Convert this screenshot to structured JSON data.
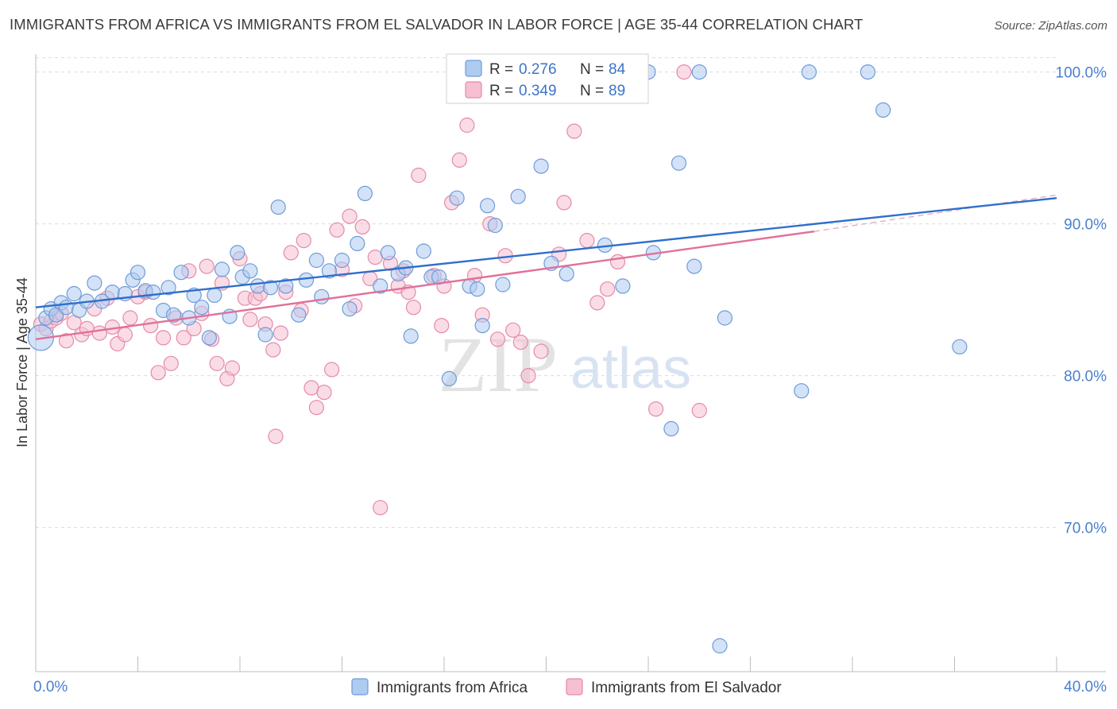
{
  "header": {
    "title": "IMMIGRANTS FROM AFRICA VS IMMIGRANTS FROM EL SALVADOR IN LABOR FORCE | AGE 35-44 CORRELATION CHART",
    "source": "Source: ZipAtlas.com"
  },
  "watermark": {
    "zip": "ZIP",
    "atlas": "atlas"
  },
  "colors": {
    "africa_fill": "#aecbf0",
    "africa_stroke": "#6f9bd8",
    "africa_line": "#2f6fcc",
    "salvador_fill": "#f6bfd2",
    "salvador_stroke": "#e58aa9",
    "salvador_line": "#e0709a",
    "tick_text": "#4a7fcf"
  },
  "legend": {
    "rows": [
      {
        "r_label": "R =",
        "r_value": "0.276",
        "n_label": "N =",
        "n_value": "84"
      },
      {
        "r_label": "R =",
        "r_value": "0.349",
        "n_label": "N =",
        "n_value": "89"
      }
    ]
  },
  "chart_data": {
    "type": "scatter",
    "title": "IMMIGRANTS FROM AFRICA VS IMMIGRANTS FROM EL SALVADOR IN LABOR FORCE | AGE 35-44 CORRELATION CHART",
    "xlabel": "",
    "ylabel": "In Labor Force | Age 35-44",
    "xlim": [
      0,
      40
    ],
    "ylim": [
      60.5,
      101.5
    ],
    "x_tick_labels": [
      "0.0%",
      "40.0%"
    ],
    "y_ticks": [
      70,
      80,
      90,
      100
    ],
    "y_tick_labels": [
      "70.0%",
      "80.0%",
      "90.0%",
      "100.0%"
    ],
    "grid": "horizontal dashed",
    "legend_position": "top-center",
    "series": [
      {
        "name": "Immigrants from Africa",
        "r": 0.276,
        "n": 84,
        "trend": {
          "x": [
            0,
            40
          ],
          "y": [
            84.5,
            91.7
          ]
        },
        "points": [
          [
            0.2,
            82.5
          ],
          [
            0.4,
            83.8
          ],
          [
            0.6,
            84.4
          ],
          [
            0.8,
            84.0
          ],
          [
            1.0,
            84.8
          ],
          [
            1.2,
            84.5
          ],
          [
            1.5,
            85.4
          ],
          [
            1.7,
            84.3
          ],
          [
            2.0,
            84.9
          ],
          [
            2.3,
            86.1
          ],
          [
            2.6,
            84.9
          ],
          [
            3.0,
            85.5
          ],
          [
            3.5,
            85.4
          ],
          [
            3.8,
            86.3
          ],
          [
            4.0,
            86.8
          ],
          [
            4.3,
            85.6
          ],
          [
            4.6,
            85.5
          ],
          [
            5.0,
            84.3
          ],
          [
            5.2,
            85.8
          ],
          [
            5.4,
            84.0
          ],
          [
            5.7,
            86.8
          ],
          [
            6.0,
            83.8
          ],
          [
            6.2,
            85.3
          ],
          [
            6.5,
            84.5
          ],
          [
            6.8,
            82.5
          ],
          [
            7.0,
            85.3
          ],
          [
            7.3,
            87.0
          ],
          [
            7.6,
            83.9
          ],
          [
            7.9,
            88.1
          ],
          [
            8.1,
            86.5
          ],
          [
            8.4,
            86.9
          ],
          [
            8.7,
            85.9
          ],
          [
            9.0,
            82.7
          ],
          [
            9.2,
            85.8
          ],
          [
            9.5,
            91.1
          ],
          [
            9.8,
            85.9
          ],
          [
            10.3,
            84.0
          ],
          [
            10.6,
            86.3
          ],
          [
            11.0,
            87.6
          ],
          [
            11.2,
            85.2
          ],
          [
            11.5,
            86.9
          ],
          [
            12.0,
            87.6
          ],
          [
            12.3,
            84.4
          ],
          [
            12.6,
            88.7
          ],
          [
            12.9,
            92.0
          ],
          [
            13.5,
            85.9
          ],
          [
            13.8,
            88.1
          ],
          [
            14.2,
            86.7
          ],
          [
            14.5,
            87.1
          ],
          [
            14.7,
            82.6
          ],
          [
            15.2,
            88.2
          ],
          [
            15.5,
            86.5
          ],
          [
            15.8,
            86.5
          ],
          [
            16.2,
            79.8
          ],
          [
            16.5,
            91.7
          ],
          [
            17.0,
            85.9
          ],
          [
            17.3,
            85.7
          ],
          [
            17.5,
            83.3
          ],
          [
            17.7,
            91.2
          ],
          [
            18.0,
            89.9
          ],
          [
            18.3,
            86.0
          ],
          [
            18.9,
            91.8
          ],
          [
            19.0,
            100.0
          ],
          [
            19.3,
            100.0
          ],
          [
            19.8,
            93.8
          ],
          [
            20.2,
            87.4
          ],
          [
            20.5,
            100.0
          ],
          [
            20.8,
            86.7
          ],
          [
            21.2,
            100.0
          ],
          [
            21.5,
            100.0
          ],
          [
            22.3,
            88.6
          ],
          [
            23.0,
            85.9
          ],
          [
            24.0,
            100.0
          ],
          [
            24.2,
            88.1
          ],
          [
            24.9,
            76.5
          ],
          [
            25.2,
            94.0
          ],
          [
            25.8,
            87.2
          ],
          [
            26.0,
            100.0
          ],
          [
            27.0,
            83.8
          ],
          [
            30.0,
            79.0
          ],
          [
            30.3,
            100.0
          ],
          [
            32.6,
            100.0
          ],
          [
            33.2,
            97.5
          ],
          [
            36.2,
            81.9
          ],
          [
            26.8,
            62.2
          ]
        ]
      },
      {
        "name": "Immigrants from El Salvador",
        "r": 0.349,
        "n": 89,
        "trend": {
          "x": [
            0,
            30.5
          ],
          "y": [
            82.4,
            89.5
          ]
        },
        "trend_extension": {
          "x": [
            30.5,
            40
          ],
          "y": [
            89.5,
            91.9
          ]
        },
        "points": [
          [
            0.2,
            83.4
          ],
          [
            0.4,
            83.1
          ],
          [
            0.6,
            83.6
          ],
          [
            0.8,
            83.8
          ],
          [
            1.0,
            84.1
          ],
          [
            1.2,
            82.3
          ],
          [
            1.5,
            83.5
          ],
          [
            1.8,
            82.7
          ],
          [
            2.0,
            83.1
          ],
          [
            2.3,
            84.4
          ],
          [
            2.5,
            82.8
          ],
          [
            2.8,
            85.1
          ],
          [
            3.0,
            83.2
          ],
          [
            3.2,
            82.1
          ],
          [
            3.5,
            82.7
          ],
          [
            3.7,
            83.8
          ],
          [
            4.0,
            85.2
          ],
          [
            4.3,
            85.5
          ],
          [
            4.5,
            83.3
          ],
          [
            4.8,
            80.2
          ],
          [
            5.0,
            82.5
          ],
          [
            5.3,
            80.8
          ],
          [
            5.5,
            83.8
          ],
          [
            5.8,
            82.5
          ],
          [
            6.0,
            86.9
          ],
          [
            6.2,
            83.1
          ],
          [
            6.5,
            84.1
          ],
          [
            6.7,
            87.2
          ],
          [
            6.9,
            82.4
          ],
          [
            7.1,
            80.8
          ],
          [
            7.3,
            86.1
          ],
          [
            7.5,
            79.8
          ],
          [
            7.7,
            80.5
          ],
          [
            8.0,
            87.7
          ],
          [
            8.2,
            85.1
          ],
          [
            8.4,
            83.7
          ],
          [
            8.6,
            85.1
          ],
          [
            8.8,
            85.4
          ],
          [
            9.0,
            83.4
          ],
          [
            9.3,
            81.7
          ],
          [
            9.4,
            76.0
          ],
          [
            9.6,
            82.8
          ],
          [
            9.8,
            85.5
          ],
          [
            10.0,
            88.1
          ],
          [
            10.4,
            84.3
          ],
          [
            10.5,
            88.9
          ],
          [
            10.8,
            79.2
          ],
          [
            11.0,
            77.9
          ],
          [
            11.3,
            78.9
          ],
          [
            11.6,
            80.4
          ],
          [
            11.8,
            89.6
          ],
          [
            12.0,
            87.0
          ],
          [
            12.3,
            90.5
          ],
          [
            12.5,
            84.6
          ],
          [
            12.8,
            89.8
          ],
          [
            13.1,
            86.4
          ],
          [
            13.3,
            87.8
          ],
          [
            13.5,
            71.3
          ],
          [
            13.9,
            87.4
          ],
          [
            14.2,
            85.9
          ],
          [
            14.4,
            86.9
          ],
          [
            14.6,
            85.5
          ],
          [
            14.8,
            84.5
          ],
          [
            15.0,
            93.2
          ],
          [
            15.6,
            86.6
          ],
          [
            15.9,
            83.3
          ],
          [
            16.0,
            85.9
          ],
          [
            16.3,
            91.4
          ],
          [
            16.6,
            94.2
          ],
          [
            16.9,
            96.5
          ],
          [
            17.2,
            86.6
          ],
          [
            17.5,
            84.0
          ],
          [
            17.8,
            90.0
          ],
          [
            18.1,
            82.4
          ],
          [
            18.4,
            87.9
          ],
          [
            18.7,
            83.0
          ],
          [
            19.0,
            82.2
          ],
          [
            19.3,
            80.0
          ],
          [
            19.8,
            81.6
          ],
          [
            20.5,
            88.0
          ],
          [
            20.7,
            91.4
          ],
          [
            21.1,
            96.1
          ],
          [
            21.6,
            88.9
          ],
          [
            22.0,
            84.8
          ],
          [
            22.4,
            85.7
          ],
          [
            22.8,
            87.5
          ],
          [
            24.3,
            77.8
          ],
          [
            25.4,
            100.0
          ],
          [
            26.0,
            77.7
          ]
        ]
      }
    ]
  },
  "bottom_legend": {
    "items": [
      {
        "label": "Immigrants from Africa"
      },
      {
        "label": "Immigrants from El Salvador"
      }
    ]
  }
}
